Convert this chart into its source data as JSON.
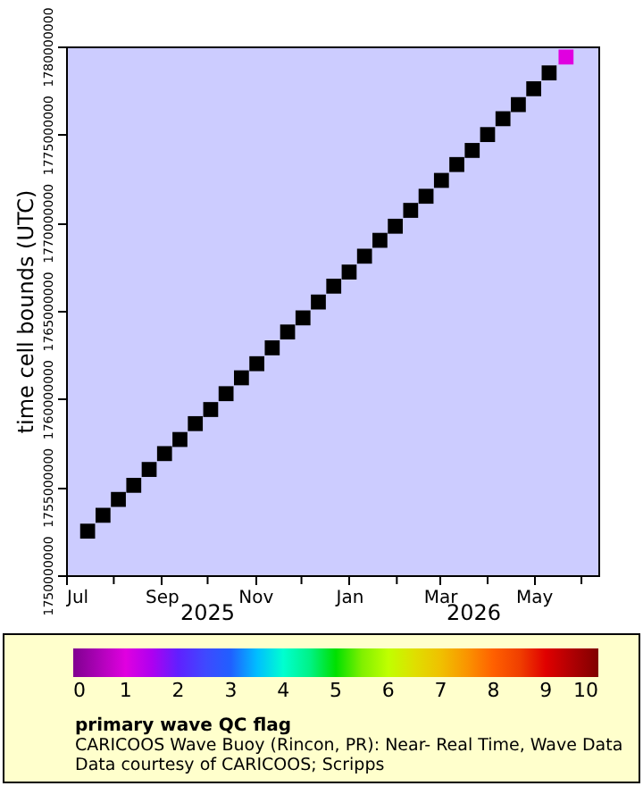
{
  "chart_data": {
    "type": "scatter",
    "xlabel": null,
    "ylabel": "time cell bounds (UTC)",
    "clabel": "primary wave QC flag",
    "x": [
      "2025-07-15",
      "2025-07-25",
      "2025-08-04",
      "2025-08-14",
      "2025-08-24",
      "2025-09-03",
      "2025-09-13",
      "2025-09-23",
      "2025-10-03",
      "2025-10-13",
      "2025-10-23",
      "2025-11-02",
      "2025-11-12",
      "2025-11-22",
      "2025-12-02",
      "2025-12-12",
      "2025-12-22",
      "2026-01-01",
      "2026-01-11",
      "2026-01-21",
      "2026-01-31",
      "2026-02-10",
      "2026-02-20",
      "2026-03-02",
      "2026-03-12",
      "2026-03-22",
      "2026-04-01",
      "2026-04-11",
      "2026-04-21",
      "2026-05-01",
      "2026-05-11",
      "2026-05-22"
    ],
    "values": [
      1752500000,
      1753400000,
      1754300000,
      1755100000,
      1756000000,
      1756900000,
      1757700000,
      1758600000,
      1759400000,
      1760300000,
      1761200000,
      1762000000,
      1762900000,
      1763800000,
      1764600000,
      1765500000,
      1766400000,
      1767200000,
      1768100000,
      1769000000,
      1769800000,
      1770700000,
      1771500000,
      1772400000,
      1773300000,
      1774100000,
      1775000000,
      1775900000,
      1776700000,
      1777600000,
      1778500000,
      1779400000
    ],
    "cvalues": [
      null,
      null,
      null,
      null,
      null,
      null,
      null,
      null,
      null,
      null,
      null,
      null,
      null,
      null,
      null,
      null,
      null,
      null,
      null,
      null,
      null,
      null,
      null,
      null,
      null,
      null,
      null,
      null,
      null,
      null,
      null,
      1
    ],
    "colors": [
      "#000000",
      "#000000",
      "#000000",
      "#000000",
      "#000000",
      "#000000",
      "#000000",
      "#000000",
      "#000000",
      "#000000",
      "#000000",
      "#000000",
      "#000000",
      "#000000",
      "#000000",
      "#000000",
      "#000000",
      "#000000",
      "#000000",
      "#000000",
      "#000000",
      "#000000",
      "#000000",
      "#000000",
      "#000000",
      "#000000",
      "#000000",
      "#000000",
      "#000000",
      "#000000",
      "#000000",
      "#e000e0"
    ],
    "marker": "square",
    "clim": [
      0,
      10
    ],
    "cticks": [
      0,
      1,
      2,
      3,
      4,
      5,
      6,
      7,
      8,
      9,
      10
    ],
    "xlim": [
      "2025-07-01",
      "2026-06-12"
    ],
    "xticks": [
      {
        "value": "2025-07-01",
        "label": "Jul"
      },
      {
        "value": "2025-08-01",
        "label": null
      },
      {
        "value": "2025-09-01",
        "label": "Sep"
      },
      {
        "value": "2025-10-01",
        "label": null
      },
      {
        "value": "2025-11-01",
        "label": "Nov"
      },
      {
        "value": "2025-12-01",
        "label": null
      },
      {
        "value": "2026-01-01",
        "label": "Jan"
      },
      {
        "value": "2026-02-01",
        "label": null
      },
      {
        "value": "2026-03-01",
        "label": "Mar"
      },
      {
        "value": "2026-04-01",
        "label": null
      },
      {
        "value": "2026-05-01",
        "label": "May"
      },
      {
        "value": "2026-06-01",
        "label": null
      }
    ],
    "ylim": [
      1750000000,
      1780000000
    ],
    "yticks": [
      1750000000,
      1755000000,
      1760000000,
      1765000000,
      1770000000,
      1775000000,
      1780000000
    ],
    "grid": false,
    "annotations": [
      "2025",
      "2026",
      "CARICOOS Wave Buoy (Rincon, PR): Near- Real Time, Wave Data",
      "Data courtesy of CARICOOS; Scripps"
    ]
  }
}
